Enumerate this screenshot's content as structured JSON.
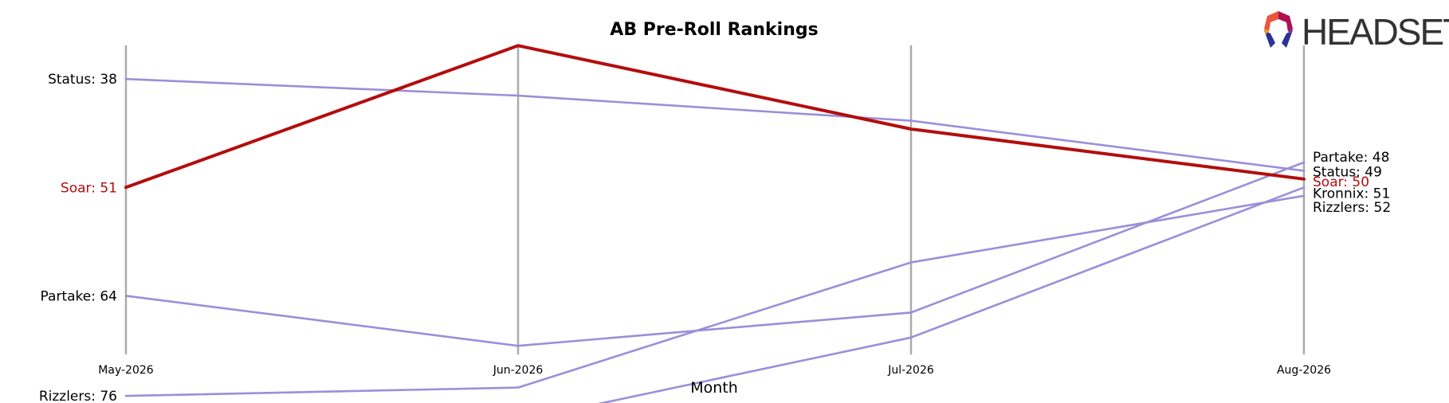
{
  "chart_data": {
    "type": "line",
    "title": "AB Pre-Roll Rankings",
    "xlabel": "Month",
    "ylabel": "",
    "categories": [
      "May-2026",
      "Jun-2026",
      "Jul-2026",
      "Aug-2026"
    ],
    "y_inverted": true,
    "grid": "vertical lines at each month",
    "highlight_series": "Soar",
    "colors": {
      "highlight": "#b30d0d",
      "other": "#9b8fd9",
      "grid": "#aaaaaa"
    },
    "series": [
      {
        "name": "Soar",
        "values": [
          51,
          34,
          44,
          50
        ],
        "highlight": true,
        "start_label": "Soar: 51",
        "end_label": "Soar: 50"
      },
      {
        "name": "Status",
        "values": [
          38,
          40,
          43,
          49
        ],
        "start_label": "Status: 38",
        "end_label": "Status: 49"
      },
      {
        "name": "Partake",
        "values": [
          64,
          70,
          66,
          48
        ],
        "start_label": "Partake: 64",
        "end_label": "Partake: 48"
      },
      {
        "name": "Rizzlers",
        "values": [
          76,
          75,
          60,
          52
        ],
        "start_label": "Rizzlers: 76",
        "end_label": "Rizzlers: 52"
      },
      {
        "name": "Kronnix",
        "values": [
          null,
          79,
          69,
          51
        ],
        "start_label": "",
        "end_label": "Kronnix: 51"
      }
    ]
  },
  "logo": {
    "brand": "HEADSET",
    "icon": "headset-logo-icon"
  }
}
